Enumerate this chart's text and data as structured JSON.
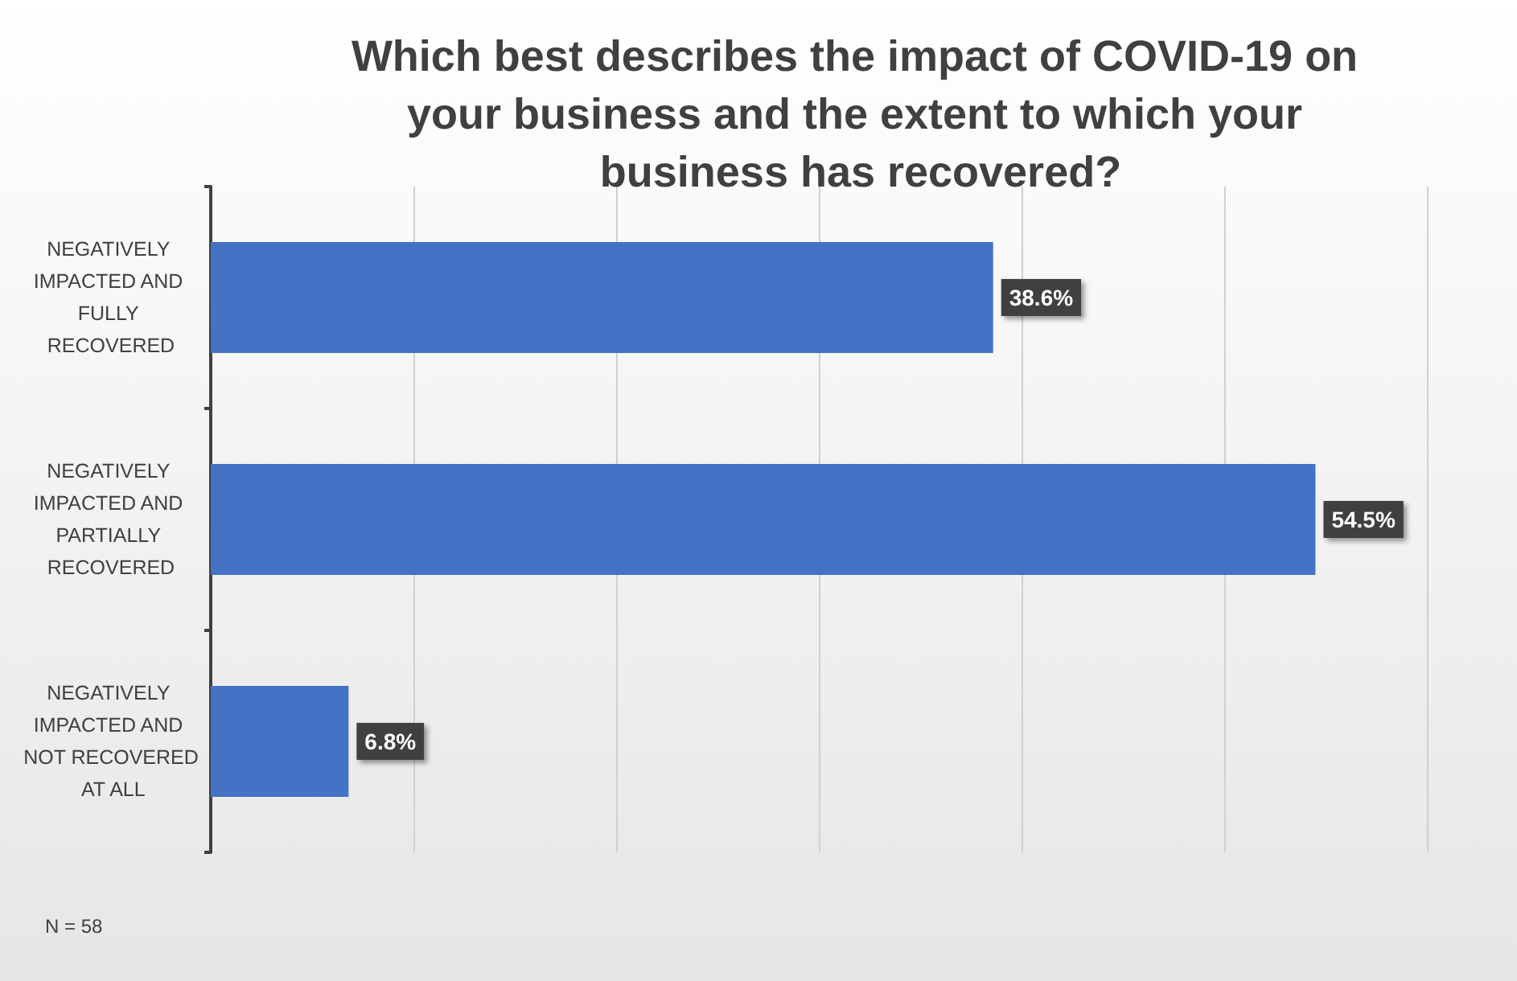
{
  "chart_data": {
    "type": "bar",
    "orientation": "horizontal",
    "title": "Which best describes the impact of COVID-19 on your business and the extent to which your business has recovered?",
    "categories": [
      "NEGATIVELY IMPACTED AND FULLY RECOVERED",
      "NEGATIVELY IMPACTED AND PARTIALLY RECOVERED",
      "NEGATIVELY IMPACTED AND NOT RECOVERED AT ALL"
    ],
    "values": [
      38.6,
      54.5,
      6.8
    ],
    "value_labels": [
      "38.6%",
      "54.5%",
      "6.8%"
    ],
    "color": "#4472c4",
    "xlim": [
      0,
      60
    ],
    "xticks": [
      {
        "value": 0,
        "label": null
      },
      {
        "value": 10,
        "label": null
      },
      {
        "value": 20,
        "label": null
      },
      {
        "value": 30,
        "label": null
      },
      {
        "value": 40,
        "label": null
      },
      {
        "value": 50,
        "label": null
      },
      {
        "value": 60,
        "label": null
      }
    ],
    "tick_labels": "y",
    "grid": "x",
    "annotations": [
      "N = 58"
    ]
  }
}
